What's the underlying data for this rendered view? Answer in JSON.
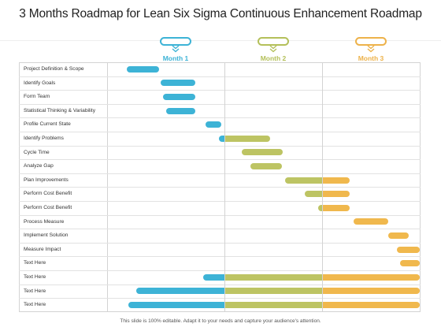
{
  "title": "3 Months Roadmap for Lean Six Sigma Continuous Enhancement Roadmap",
  "footer": "This slide is 100% editable. Adapt it to your needs and capture your audience's attention.",
  "colors": {
    "blue": "#3db3d6",
    "green": "#bdc463",
    "orange": "#f0b84d"
  },
  "months": [
    {
      "label": "Month 1",
      "color": "#3db3d6"
    },
    {
      "label": "Month 2",
      "color": "#b4c05a"
    },
    {
      "label": "Month 3",
      "color": "#edb24a"
    }
  ],
  "tasks": [
    {
      "label": "Project Definition & Scope",
      "segments": [
        {
          "start": 0.0,
          "end": 0.33,
          "color": "blue"
        }
      ]
    },
    {
      "label": "Identify Goals",
      "segments": [
        {
          "start": 0.35,
          "end": 0.7,
          "color": "blue"
        }
      ]
    },
    {
      "label": "Form Team",
      "segments": [
        {
          "start": 0.37,
          "end": 0.7,
          "color": "blue"
        }
      ]
    },
    {
      "label": "Statistical Thinking & Variability",
      "segments": [
        {
          "start": 0.4,
          "end": 0.7,
          "color": "blue"
        }
      ]
    },
    {
      "label": "Profile Current State",
      "segments": [
        {
          "start": 0.81,
          "end": 0.97,
          "color": "blue"
        }
      ]
    },
    {
      "label": "Identify Problems",
      "segments": [
        {
          "start": 0.94,
          "end": 1.0,
          "color": "blue"
        },
        {
          "start": 1.0,
          "end": 1.47,
          "color": "green"
        }
      ]
    },
    {
      "label": "Cycle Time",
      "segments": [
        {
          "start": 1.18,
          "end": 1.6,
          "color": "green"
        }
      ]
    },
    {
      "label": "Analyze Gap",
      "segments": [
        {
          "start": 1.27,
          "end": 1.59,
          "color": "green"
        }
      ]
    },
    {
      "label": "Plan Improvements",
      "segments": [
        {
          "start": 1.62,
          "end": 2.0,
          "color": "green"
        },
        {
          "start": 2.0,
          "end": 2.28,
          "color": "orange"
        }
      ]
    },
    {
      "label": "Perform Cost Benefit",
      "segments": [
        {
          "start": 1.82,
          "end": 2.0,
          "color": "green"
        },
        {
          "start": 2.0,
          "end": 2.28,
          "color": "orange"
        }
      ]
    },
    {
      "label": "Perform Cost Benefit",
      "segments": [
        {
          "start": 1.96,
          "end": 2.0,
          "color": "green"
        },
        {
          "start": 2.0,
          "end": 2.28,
          "color": "orange"
        }
      ]
    },
    {
      "label": "Process Measure",
      "segments": [
        {
          "start": 2.32,
          "end": 2.68,
          "color": "orange"
        }
      ]
    },
    {
      "label": "Implement Solution",
      "segments": [
        {
          "start": 2.68,
          "end": 2.89,
          "color": "orange"
        }
      ]
    },
    {
      "label": "Measure Impact",
      "segments": [
        {
          "start": 2.77,
          "end": 3.0,
          "color": "orange"
        }
      ]
    },
    {
      "label": "Text Here",
      "segments": [
        {
          "start": 2.8,
          "end": 3.0,
          "color": "orange"
        }
      ]
    },
    {
      "label": "Text Here",
      "segments": [
        {
          "start": 0.78,
          "end": 1.0,
          "color": "blue"
        },
        {
          "start": 1.0,
          "end": 2.0,
          "color": "green"
        },
        {
          "start": 2.0,
          "end": 3.0,
          "color": "orange"
        }
      ]
    },
    {
      "label": "Text Here",
      "segments": [
        {
          "start": 0.1,
          "end": 1.0,
          "color": "blue"
        },
        {
          "start": 1.0,
          "end": 2.0,
          "color": "green"
        },
        {
          "start": 2.0,
          "end": 3.0,
          "color": "orange"
        }
      ]
    },
    {
      "label": "Text Here",
      "segments": [
        {
          "start": 0.02,
          "end": 1.0,
          "color": "blue"
        },
        {
          "start": 1.0,
          "end": 2.0,
          "color": "green"
        },
        {
          "start": 2.0,
          "end": 3.0,
          "color": "orange"
        }
      ]
    }
  ]
}
